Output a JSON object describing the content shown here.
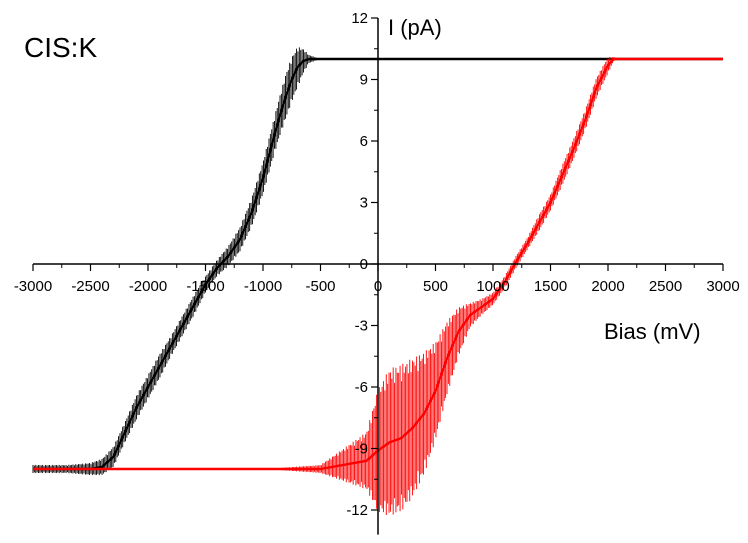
{
  "chart_data": {
    "type": "line",
    "title": "",
    "annotation": "CIS:K",
    "xlabel": "Bias (mV)",
    "ylabel": "I (pA)",
    "xlim": [
      -3000,
      3000
    ],
    "ylim": [
      -13.2,
      12
    ],
    "x_ticks": [
      -3000,
      -2500,
      -2000,
      -1500,
      -1000,
      -500,
      0,
      500,
      1000,
      1500,
      2000,
      2500,
      3000
    ],
    "x_tick_labels": [
      "-3000",
      "-2500",
      "-2000",
      "-1500",
      "-1000",
      "-500",
      "0",
      "500",
      "1000",
      "1500",
      "2000",
      "2500",
      "3000"
    ],
    "y_ticks": [
      -12,
      -9,
      -6,
      -3,
      0,
      3,
      6,
      9,
      12
    ],
    "y_tick_labels": [
      "-12",
      "-9",
      "-6",
      "-3",
      "0",
      "3",
      "6",
      "9",
      "12"
    ],
    "grid": false,
    "legend": "none",
    "series": [
      {
        "color": "#000000",
        "x": [
          -3000,
          -2700,
          -2500,
          -2400,
          -2300,
          -2200,
          -2100,
          -2000,
          -1900,
          -1800,
          -1700,
          -1600,
          -1500,
          -1400,
          -1300,
          -1200,
          -1100,
          -1000,
          -900,
          -850,
          -800,
          -750,
          -700,
          -650,
          -600,
          -550,
          -500,
          0,
          500,
          1000,
          1500,
          2000,
          2500,
          3000
        ],
        "y": [
          -10,
          -10,
          -10,
          -9.9,
          -9.4,
          -8.2,
          -7.0,
          -6.0,
          -5.0,
          -4.0,
          -3.0,
          -2.0,
          -1.0,
          -0.2,
          0.4,
          1.2,
          2.5,
          4.2,
          6.3,
          7.3,
          8.2,
          9.0,
          9.6,
          9.9,
          10,
          10,
          10,
          10,
          10,
          10,
          10,
          10,
          10,
          10
        ],
        "err": [
          0.2,
          0.2,
          0.3,
          0.4,
          0.5,
          0.5,
          0.6,
          0.6,
          0.6,
          0.5,
          0.5,
          0.5,
          0.4,
          0.4,
          0.5,
          0.6,
          0.7,
          0.8,
          0.9,
          1.0,
          1.1,
          1.1,
          1.0,
          0.6,
          0.2,
          0.1,
          0,
          0,
          0,
          0,
          0,
          0,
          0,
          0
        ]
      },
      {
        "color": "#ff0000",
        "x": [
          -3000,
          -2500,
          -2000,
          -1500,
          -1000,
          -500,
          -100,
          0,
          100,
          200,
          300,
          400,
          500,
          600,
          700,
          800,
          900,
          1000,
          1100,
          1200,
          1300,
          1400,
          1500,
          1600,
          1700,
          1800,
          1900,
          2000,
          2050,
          2100,
          2500,
          3000
        ],
        "y": [
          -10,
          -10,
          -10,
          -10,
          -10,
          -10,
          -9.6,
          -9.1,
          -8.7,
          -8.5,
          -8.0,
          -7.3,
          -6.2,
          -4.6,
          -3.3,
          -2.5,
          -2.1,
          -1.7,
          -0.9,
          0.1,
          1.0,
          2.0,
          3.0,
          4.3,
          5.6,
          7.0,
          8.6,
          9.7,
          10,
          10,
          10,
          10
        ],
        "err": [
          0,
          0,
          0,
          0,
          0,
          0.2,
          1.4,
          3.0,
          3.6,
          3.6,
          3.4,
          3.0,
          2.4,
          1.8,
          1.2,
          0.6,
          0.4,
          0.3,
          0.3,
          0.3,
          0.3,
          0.4,
          0.4,
          0.5,
          0.5,
          0.5,
          0.5,
          0.4,
          0.1,
          0,
          0,
          0
        ]
      }
    ]
  }
}
